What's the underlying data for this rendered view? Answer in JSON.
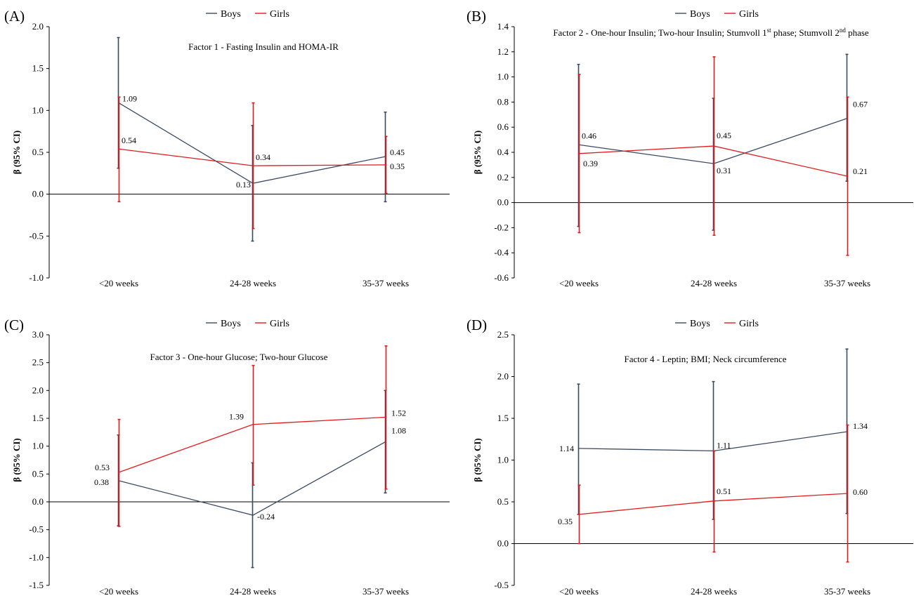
{
  "colors": {
    "boys": "#3b4a63",
    "girls": "#e31a1c",
    "axis": "#000000"
  },
  "chart_data": [
    {
      "type": "line",
      "panel": "(A)",
      "title": "Factor 1 - Fasting Insulin and HOMA-IR",
      "ylabel": "β (95% CI)",
      "ylim": [
        -1.0,
        2.0
      ],
      "yticks": [
        "-1.0",
        "-0.5",
        "0.0",
        "0.5",
        "1.0",
        "1.5",
        "2.0"
      ],
      "categories": [
        "<20 weeks",
        "24-28 weeks",
        "35-37 weeks"
      ],
      "legend": "top-center",
      "series": [
        {
          "name": "Boys",
          "values": [
            1.09,
            0.13,
            0.45
          ],
          "labels": [
            "1.09",
            "0.13",
            "0.45"
          ],
          "ci_low": [
            0.31,
            -0.56,
            -0.09
          ],
          "ci_high": [
            1.87,
            0.82,
            0.98
          ]
        },
        {
          "name": "Girls",
          "values": [
            0.54,
            0.34,
            0.35
          ],
          "labels": [
            "0.54",
            "0.34",
            "0.35"
          ],
          "ci_low": [
            -0.09,
            -0.41,
            0.01
          ],
          "ci_high": [
            1.16,
            1.09,
            0.69
          ]
        }
      ]
    },
    {
      "type": "line",
      "panel": "(B)",
      "title": "Factor 2 - One-hour Insulin; Two-hour Insulin; Stumvoll 1st phase; Stumvoll 2nd phase",
      "ylabel": "β (95% CI)",
      "ylim": [
        -0.6,
        1.4
      ],
      "yticks": [
        "-0.6",
        "-0.4",
        "-0.2",
        "0.0",
        "0.2",
        "0.4",
        "0.6",
        "0.8",
        "1.0",
        "1.2",
        "1.4"
      ],
      "categories": [
        "<20 weeks",
        "24-28 weeks",
        "35-37 weeks"
      ],
      "legend": "top-center",
      "series": [
        {
          "name": "Boys",
          "values": [
            0.46,
            0.31,
            0.67
          ],
          "labels": [
            "0.46",
            "0.31",
            "0.67"
          ],
          "ci_low": [
            -0.19,
            -0.22,
            0.17
          ],
          "ci_high": [
            1.1,
            0.83,
            1.18
          ]
        },
        {
          "name": "Girls",
          "values": [
            0.39,
            0.45,
            0.21
          ],
          "labels": [
            "0.39",
            "0.45",
            "0.21"
          ],
          "ci_low": [
            -0.24,
            -0.26,
            -0.42
          ],
          "ci_high": [
            1.02,
            1.16,
            0.84
          ]
        }
      ]
    },
    {
      "type": "line",
      "panel": "(C)",
      "title": "Factor 3 - One-hour Glucose; Two-hour Glucose",
      "ylabel": "β (95% CI)",
      "ylim": [
        -1.5,
        3.0
      ],
      "yticks": [
        "-1.5",
        "-1.0",
        "-0.5",
        "0.0",
        "0.5",
        "1.0",
        "1.5",
        "2.0",
        "2.5",
        "3.0"
      ],
      "categories": [
        "<20 weeks",
        "24-28 weeks",
        "35-37 weeks"
      ],
      "legend": "top-center",
      "series": [
        {
          "name": "Boys",
          "values": [
            0.38,
            -0.24,
            1.08
          ],
          "labels": [
            "0.38",
            "-0.24",
            "1.08"
          ],
          "ci_low": [
            -0.43,
            -1.18,
            0.16
          ],
          "ci_high": [
            1.2,
            0.7,
            2.0
          ]
        },
        {
          "name": "Girls",
          "values": [
            0.53,
            1.39,
            1.52
          ],
          "labels": [
            "0.53",
            "1.39",
            "1.52"
          ],
          "ci_low": [
            -0.44,
            0.3,
            0.23
          ],
          "ci_high": [
            1.48,
            2.45,
            2.8
          ]
        }
      ]
    },
    {
      "type": "line",
      "panel": "(D)",
      "title": "Factor 4 - Leptin; BMI; Neck circumference",
      "ylabel": "β (95% CI)",
      "ylim": [
        -0.5,
        2.5
      ],
      "yticks": [
        "-0.5",
        "0.0",
        "0.5",
        "1.0",
        "1.5",
        "2.0",
        "2.5"
      ],
      "categories": [
        "<20 weeks",
        "24-28 weeks",
        "35-37 weeks"
      ],
      "legend": "top-center",
      "series": [
        {
          "name": "Boys",
          "values": [
            1.14,
            1.11,
            1.34
          ],
          "labels": [
            "1.14",
            "1.11",
            "1.34"
          ],
          "ci_low": [
            0.35,
            0.29,
            0.36
          ],
          "ci_high": [
            1.91,
            1.94,
            2.33
          ]
        },
        {
          "name": "Girls",
          "values": [
            0.35,
            0.51,
            0.6
          ],
          "labels": [
            "0.35",
            "0.51",
            "0.60"
          ],
          "ci_low": [
            0.0,
            -0.1,
            -0.22
          ],
          "ci_high": [
            0.7,
            1.11,
            1.42
          ]
        }
      ]
    }
  ]
}
